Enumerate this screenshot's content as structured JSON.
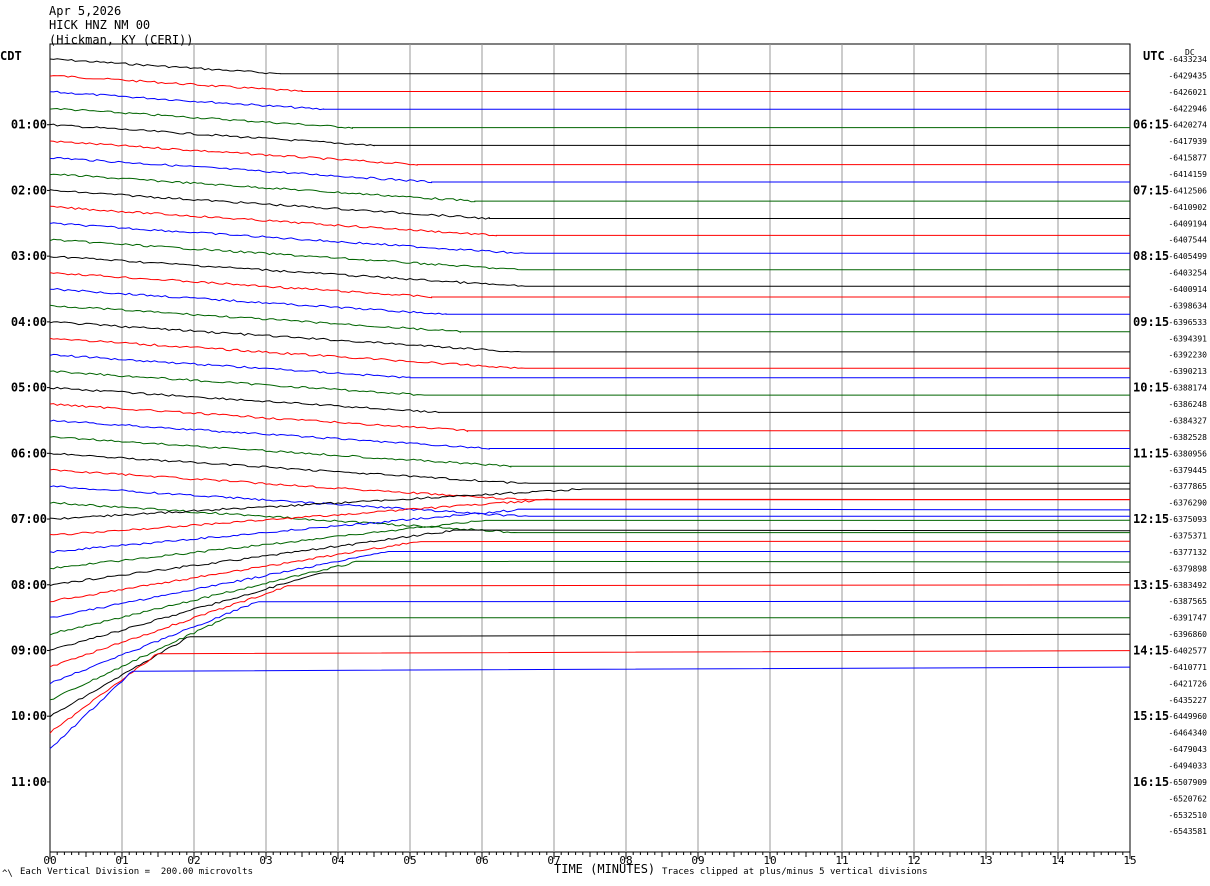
{
  "header": {
    "date": "Apr 5,2026",
    "station": "HICK HNZ NM 00",
    "location": "(Hickman, KY (CERI))"
  },
  "left_tz": "CDT",
  "right_tz": "UTC",
  "corner_label": "DC",
  "footer": {
    "vertical_division": "Each Vertical Division =  200.00 microvolts",
    "clip_note": "Traces clipped at plus/minus 5 vertical divisions",
    "corner_mark": "^\\"
  },
  "chart_data": {
    "type": "line",
    "title": "HICK HNZ NM 00",
    "xlabel": "TIME (MINUTES)",
    "xlim": [
      0,
      15
    ],
    "x_ticks": [
      "00",
      "01",
      "02",
      "03",
      "04",
      "05",
      "06",
      "07",
      "08",
      "09",
      "10",
      "11",
      "12",
      "13",
      "14",
      "15"
    ],
    "left_time_labels": [
      "01:00",
      "02:00",
      "03:00",
      "04:00",
      "05:00",
      "06:00",
      "07:00",
      "08:00",
      "09:00",
      "10:00",
      "11:00"
    ],
    "right_time_labels": [
      "06:15",
      "07:15",
      "08:15",
      "09:15",
      "10:15",
      "11:15",
      "12:15",
      "13:15",
      "14:15",
      "15:15",
      "16:15"
    ],
    "trace_colors": [
      "#000000",
      "#ff0000",
      "#0000ff",
      "#006400"
    ],
    "row_offsets": [
      "-6433234",
      "-6429435",
      "-6426021",
      "-6422946",
      "-6420274",
      "-6417939",
      "-6415877",
      "-6414159",
      "-6412506",
      "-6410902",
      "-6409194",
      "-6407544",
      "-6405499",
      "-6403254",
      "-6400914",
      "-6398634",
      "-6396533",
      "-6394391",
      "-6392230",
      "-6390213",
      "-6388174",
      "-6386248",
      "-6384327",
      "-6382528",
      "-6380956",
      "-6379445",
      "-6377865",
      "-6376290",
      "-6375093",
      "-6375371",
      "-6377132",
      "-6379898",
      "-6383492",
      "-6387565",
      "-6391747",
      "-6396860",
      "-6402577",
      "-6410771",
      "-6421726",
      "-6435227",
      "-6449960",
      "-6464340",
      "-6479043",
      "-6494033",
      "-6507909",
      "-6520762",
      "-6532510",
      "-6543581"
    ],
    "vertical_division_microvolts": 200.0,
    "clip_divisions": 5,
    "rows_per_hour": 4,
    "minutes_per_row": 15
  }
}
